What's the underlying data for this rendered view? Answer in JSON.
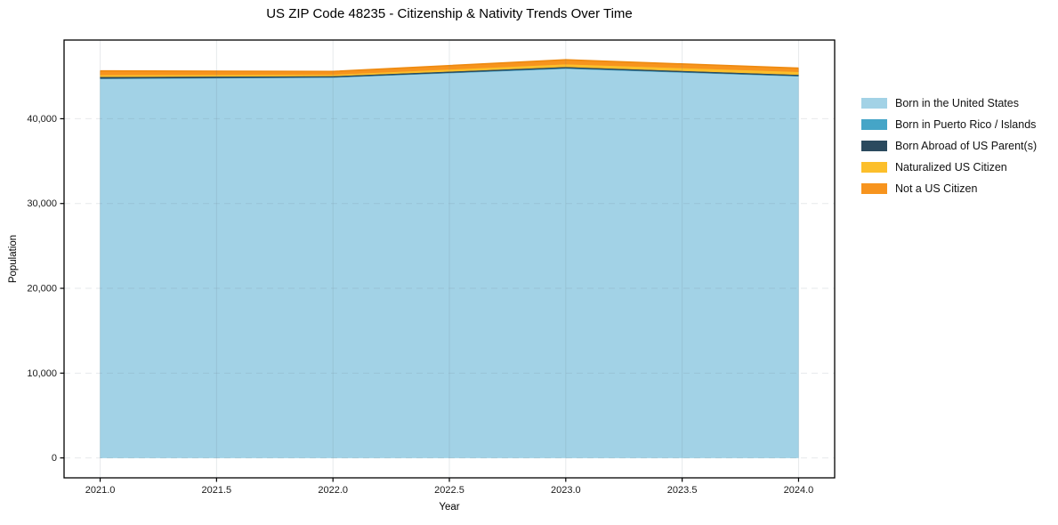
{
  "title": "US ZIP Code 48235 - Citizenship & Nativity Trends Over Time",
  "chart_data": {
    "type": "area",
    "stacked": true,
    "title": "US ZIP Code 48235 - Citizenship & Nativity Trends Over Time",
    "xlabel": "Year",
    "ylabel": "Population",
    "x": [
      2021,
      2022,
      2023,
      2024
    ],
    "series": [
      {
        "name": "Born in the United States",
        "color": "#a2d2e6",
        "values": [
          44700,
          44850,
          45900,
          45000
        ]
      },
      {
        "name": "Born in Puerto Rico / Islands",
        "color": "#45a5c7",
        "values": [
          50,
          40,
          60,
          50
        ]
      },
      {
        "name": "Born Abroad of US Parent(s)",
        "color": "#2b4a5e",
        "values": [
          200,
          150,
          160,
          150
        ]
      },
      {
        "name": "Naturalized US Citizen",
        "color": "#fcbf2b",
        "values": [
          220,
          170,
          320,
          330
        ]
      },
      {
        "name": "Not a US Citizen",
        "color": "#f7941e",
        "values": [
          470,
          370,
          510,
          430
        ]
      }
    ],
    "totals": [
      45640,
      45580,
      46950,
      45960
    ],
    "xticks": [
      2021.0,
      2021.5,
      2022.0,
      2022.5,
      2023.0,
      2023.5,
      2024.0
    ],
    "xtick_labels": [
      "2021.0",
      "2021.5",
      "2022.0",
      "2022.5",
      "2023.0",
      "2023.5",
      "2024.0"
    ],
    "yticks": [
      0,
      10000,
      20000,
      30000,
      40000
    ],
    "ytick_labels": [
      "0",
      "10,000",
      "20,000",
      "30,000",
      "40,000"
    ],
    "xlim": [
      2020.845,
      2024.155
    ],
    "ylim": [
      -2350,
      49280
    ],
    "grid": true,
    "legend_position": "right-outside",
    "top_edge_color": "#ee8a10",
    "spine_color": "#000000",
    "grid_color_rgba": "rgba(100,116,130,0.16)"
  }
}
